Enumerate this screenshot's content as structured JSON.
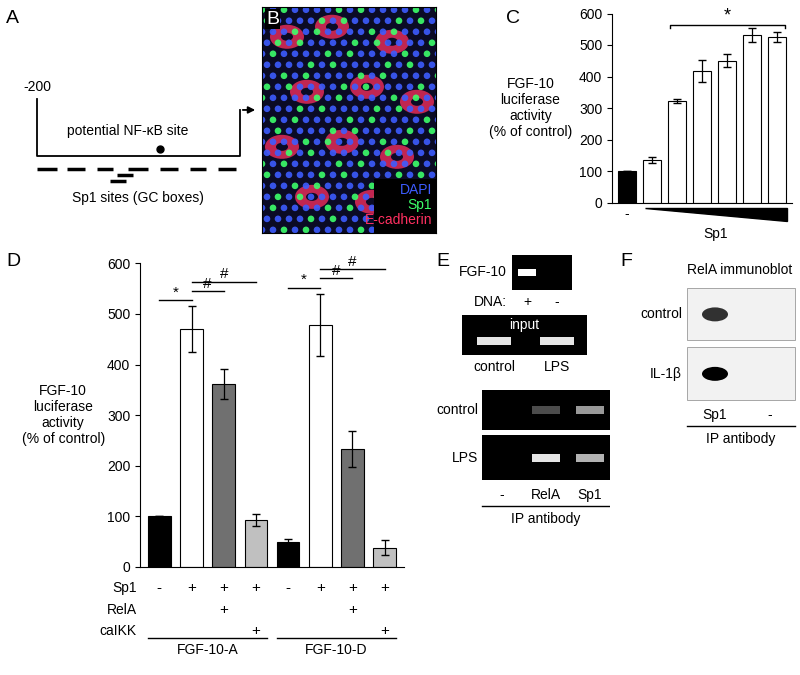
{
  "panel_labels": [
    "A",
    "B",
    "C",
    "D",
    "E",
    "F"
  ],
  "promoter": {
    "start_label": "-200",
    "site_label": "potential NF-κB site",
    "sp1_label": "Sp1 sites (GC boxes)"
  },
  "image": {
    "legend": [
      {
        "text": "DAPI",
        "color": "#3d5cff"
      },
      {
        "text": "Sp1",
        "color": "#3dff6a"
      },
      {
        "text": "E-cadherin",
        "color": "#ff3060"
      }
    ]
  },
  "chart_data": [
    {
      "type": "bar",
      "y_label": "FGF-10\nluciferase\nactivity\n(% of control)",
      "categories": [
        "-",
        null,
        null,
        null,
        null,
        null,
        null
      ],
      "values": [
        100,
        135,
        322,
        418,
        450,
        532,
        525
      ],
      "errors": [
        0,
        10,
        5,
        35,
        20,
        22,
        15
      ],
      "colors": [
        "#000000",
        "#ffffff",
        "#ffffff",
        "#ffffff",
        "#ffffff",
        "#ffffff",
        "#ffffff"
      ],
      "ylim": [
        0,
        600
      ],
      "yticks": [
        0,
        100,
        200,
        300,
        400,
        500,
        600
      ],
      "wedge_label": "Sp1",
      "significance": [
        {
          "text": "*",
          "from": 2,
          "to": 6
        }
      ]
    },
    {
      "type": "bar",
      "y_label": "FGF-10\nluciferase\nactivity\n(% of control)",
      "categories": [
        null,
        null,
        null,
        null,
        null,
        null,
        null,
        null
      ],
      "values": [
        100,
        470,
        362,
        93,
        50,
        478,
        233,
        38
      ],
      "errors": [
        0,
        45,
        30,
        12,
        6,
        62,
        35,
        15
      ],
      "colors": [
        "#000000",
        "#ffffff",
        "#707070",
        "#c0c0c0",
        "#000000",
        "#ffffff",
        "#707070",
        "#c0c0c0"
      ],
      "ylim": [
        0,
        600
      ],
      "yticks": [
        0,
        100,
        200,
        300,
        400,
        500,
        600
      ],
      "row_labels": [
        "Sp1",
        "RelA",
        "caIKK"
      ],
      "rows": [
        [
          "-",
          "+",
          "+",
          "+",
          "-",
          "+",
          "+",
          "+"
        ],
        [
          null,
          null,
          "+",
          null,
          null,
          null,
          "+",
          null
        ],
        [
          null,
          null,
          null,
          "+",
          null,
          null,
          null,
          "+"
        ]
      ],
      "groups": [
        "FGF-10-A",
        "FGF-10-D"
      ],
      "significance": [
        {
          "text": "*",
          "from": 0,
          "to": 1
        },
        {
          "text": "#",
          "from": 1,
          "to": 2
        },
        {
          "text": "#",
          "from": 1,
          "to": 3
        },
        {
          "text": "*",
          "from": 4,
          "to": 5
        },
        {
          "text": "#",
          "from": 5,
          "to": 6
        },
        {
          "text": "#",
          "from": 5,
          "to": 7
        }
      ]
    }
  ],
  "chip": {
    "dna_gel": {
      "label": "FGF-10",
      "lane_title": "DNA:",
      "lanes": [
        "+",
        "-"
      ],
      "bands": [
        1.0,
        0.0
      ]
    },
    "input_gel": {
      "label": "input",
      "lanes": [
        "control",
        "LPS"
      ],
      "bands": [
        0.9,
        0.9
      ]
    },
    "ip_gel": {
      "rows": [
        "control",
        "LPS"
      ],
      "lanes": [
        "-",
        "RelA",
        "Sp1"
      ],
      "bands": [
        [
          0.0,
          0.3,
          0.6
        ],
        [
          0.0,
          0.9,
          0.7
        ]
      ],
      "axis_label": "IP antibody"
    }
  },
  "blot": {
    "title": "RelA immunoblot",
    "rows": [
      "control",
      "IL-1β"
    ],
    "lanes": [
      "Sp1",
      "-"
    ],
    "bands": [
      [
        0.8,
        0.0
      ],
      [
        1.0,
        0.0
      ]
    ],
    "axis_label": "IP antibody"
  }
}
